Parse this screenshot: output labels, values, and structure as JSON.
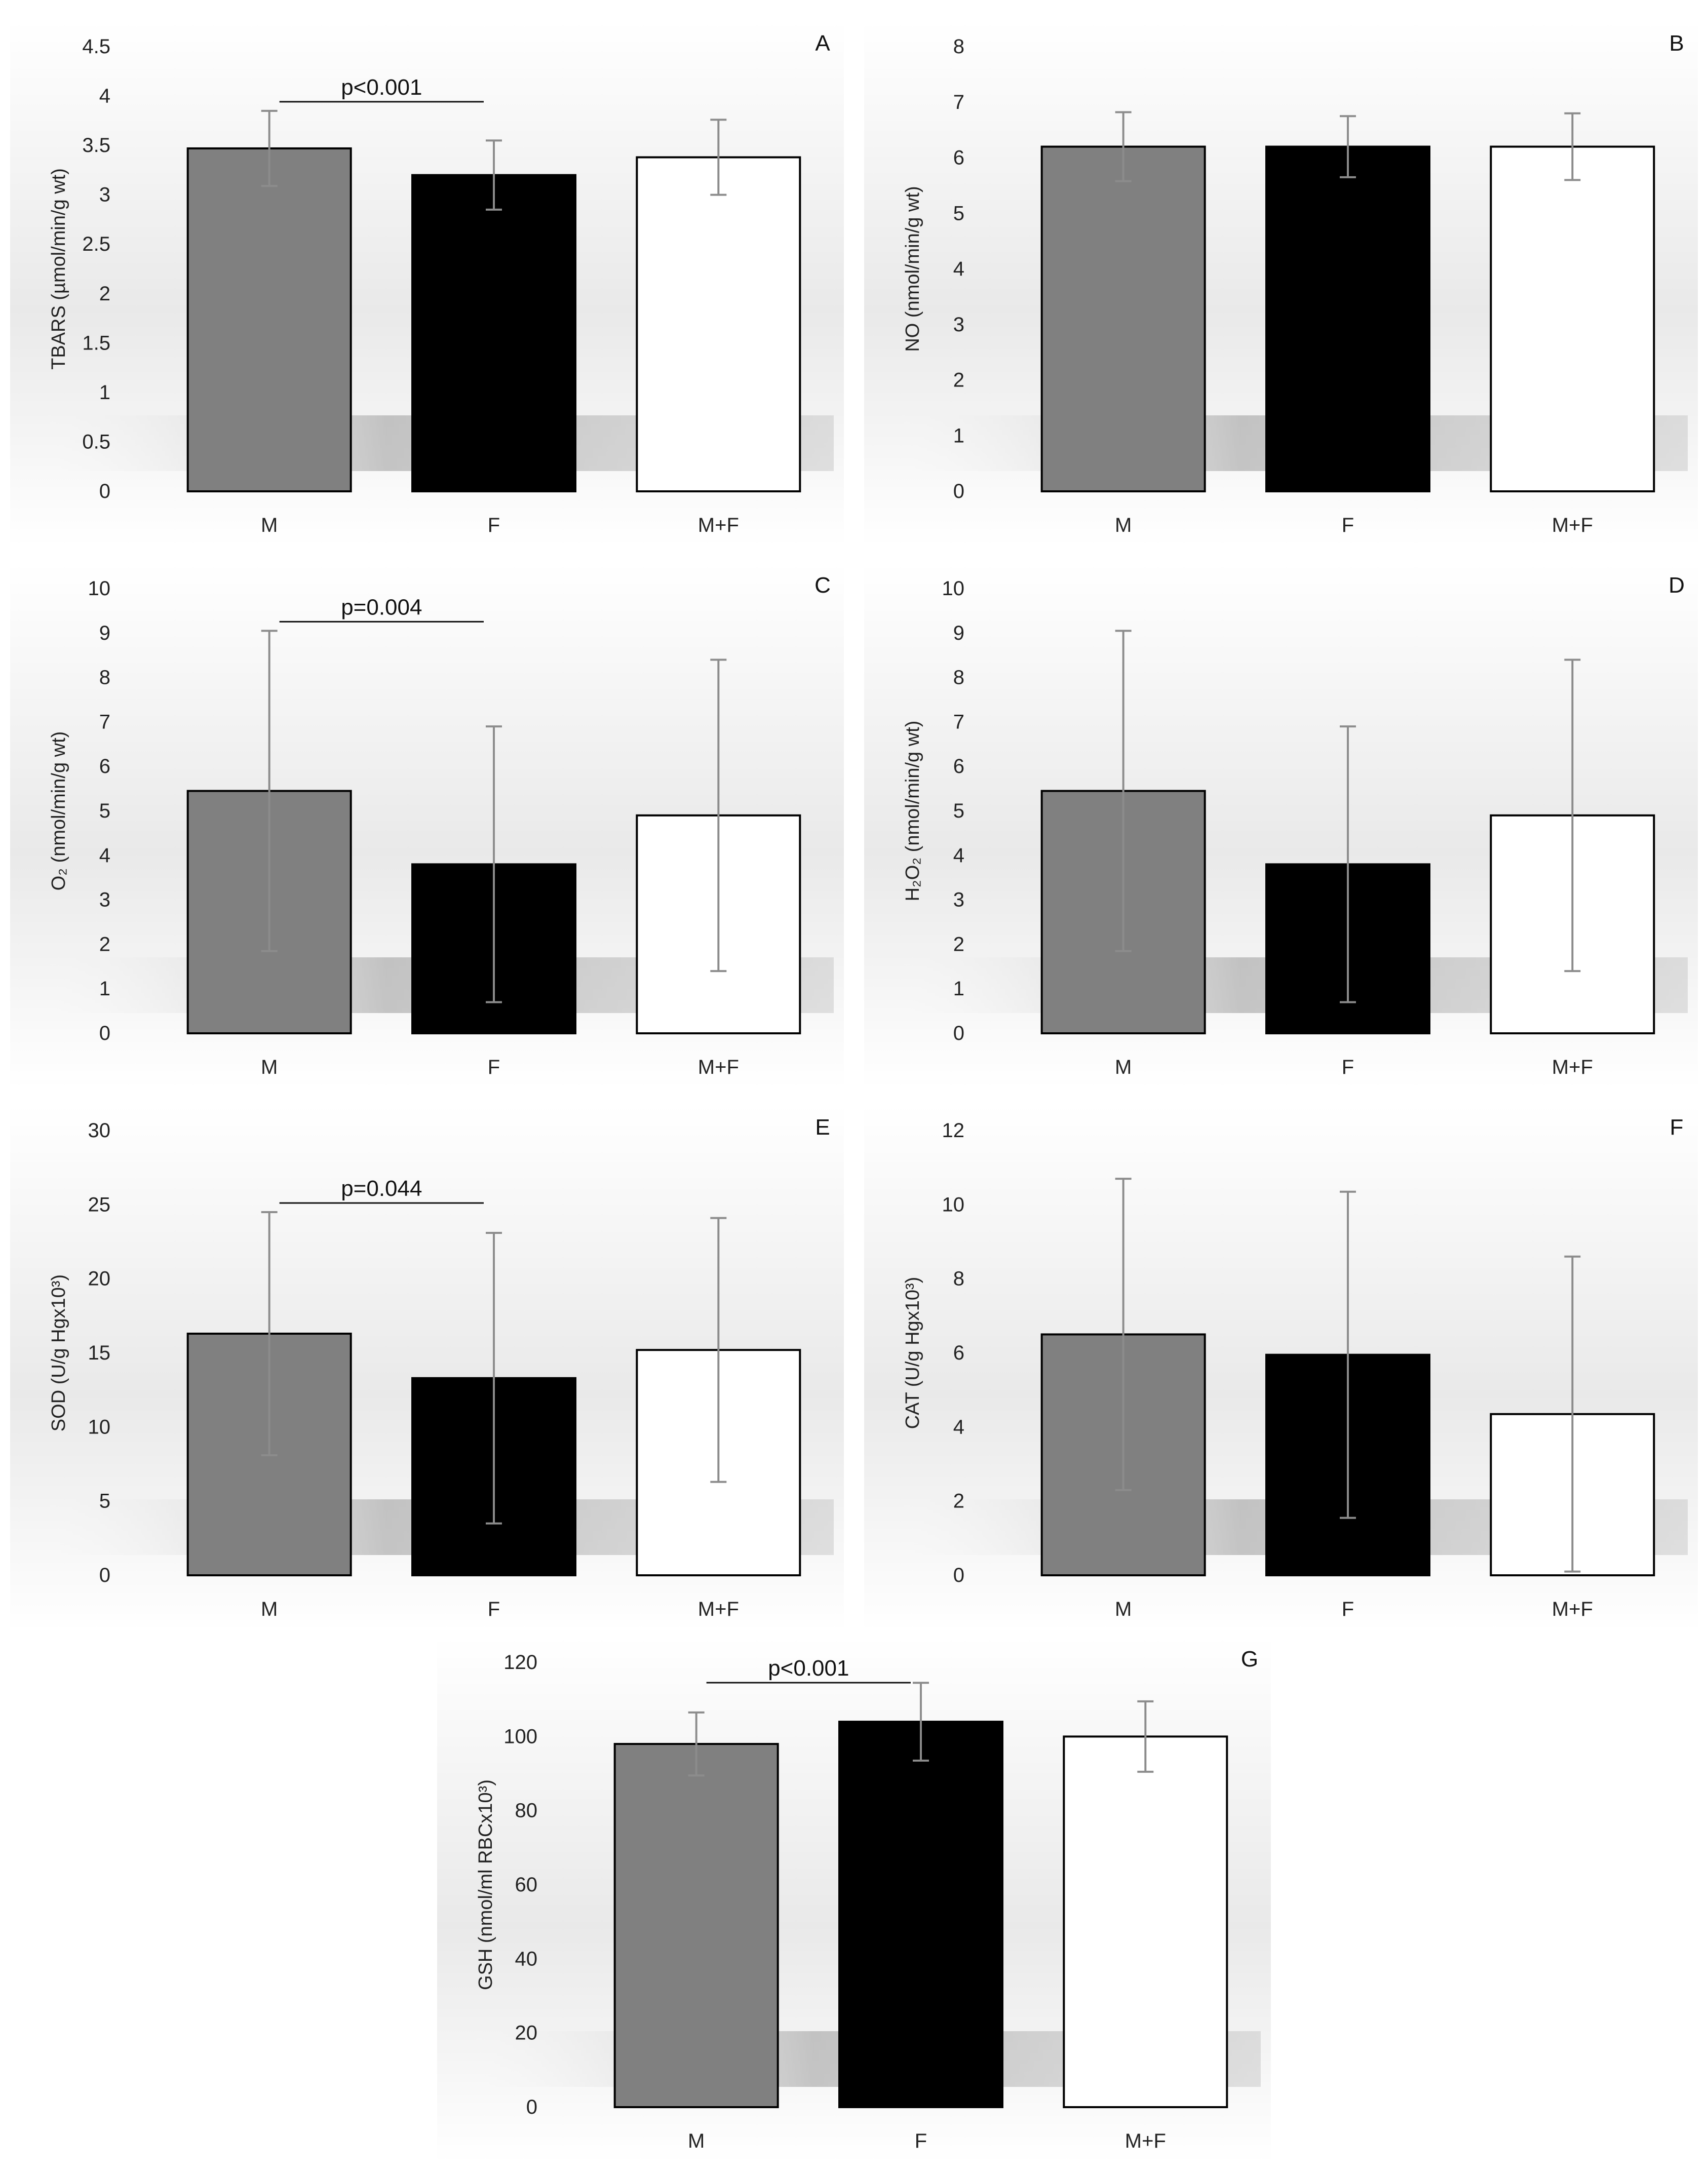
{
  "chart_data": [
    {
      "panel": "A",
      "type": "bar",
      "categories": [
        "M",
        "F",
        "M+F"
      ],
      "values": [
        3.47,
        3.2,
        3.38
      ],
      "errors": [
        0.38,
        0.35,
        0.38
      ],
      "ylabel": "TBARS (µmol/min/g wt)",
      "ylim": [
        0,
        4.5
      ],
      "yticks": [
        0,
        0.5,
        1,
        1.5,
        2,
        2.5,
        3,
        3.5,
        4,
        4.5
      ],
      "significance": {
        "label": "p<0.001",
        "from": 0,
        "to": 1
      }
    },
    {
      "panel": "B",
      "type": "bar",
      "categories": [
        "M",
        "F",
        "M+F"
      ],
      "values": [
        6.2,
        6.2,
        6.2
      ],
      "errors": [
        0.62,
        0.55,
        0.6
      ],
      "ylabel": "NO (nmol/min/g wt)",
      "ylim": [
        0,
        8
      ],
      "yticks": [
        0,
        1,
        2,
        3,
        4,
        5,
        6,
        7,
        8
      ]
    },
    {
      "panel": "C",
      "type": "bar",
      "categories": [
        "M",
        "F",
        "M+F"
      ],
      "values": [
        5.45,
        3.8,
        4.9
      ],
      "errors": [
        3.6,
        3.1,
        3.5
      ],
      "ylabel": "O₂ (nmol/min/g wt)",
      "ylim": [
        0,
        10
      ],
      "yticks": [
        0,
        1,
        2,
        3,
        4,
        5,
        6,
        7,
        8,
        9,
        10
      ],
      "significance": {
        "label": "p=0.004",
        "from": 0,
        "to": 1
      }
    },
    {
      "panel": "D",
      "type": "bar",
      "categories": [
        "M",
        "F",
        "M+F"
      ],
      "values": [
        5.45,
        3.8,
        4.9
      ],
      "errors": [
        3.6,
        3.1,
        3.5
      ],
      "ylabel": "H₂O₂ (nmol/min/g wt)",
      "ylim": [
        0,
        10
      ],
      "yticks": [
        0,
        1,
        2,
        3,
        4,
        5,
        6,
        7,
        8,
        9,
        10
      ]
    },
    {
      "panel": "E",
      "type": "bar",
      "categories": [
        "M",
        "F",
        "M+F"
      ],
      "values": [
        16.3,
        13.3,
        15.2
      ],
      "errors": [
        8.2,
        9.8,
        8.9
      ],
      "ylabel": "SOD (U/g Hgx10³)",
      "ylim": [
        0,
        30
      ],
      "yticks": [
        0,
        5,
        10,
        15,
        20,
        25,
        30
      ],
      "significance": {
        "label": "p=0.044",
        "from": 0,
        "to": 1
      }
    },
    {
      "panel": "F",
      "type": "bar",
      "categories": [
        "M",
        "F",
        "M+F"
      ],
      "values": [
        6.5,
        5.95,
        4.35
      ],
      "errors": [
        4.2,
        4.4,
        4.25
      ],
      "ylabel": "CAT (U/g Hgx10³)",
      "ylim": [
        0,
        12
      ],
      "yticks": [
        0,
        2,
        4,
        6,
        8,
        10,
        12
      ]
    },
    {
      "panel": "G",
      "type": "bar",
      "categories": [
        "M",
        "F",
        "M+F"
      ],
      "values": [
        98,
        104,
        100
      ],
      "errors": [
        8.5,
        10.5,
        9.5
      ],
      "ylabel": "GSH (nmol/ml RBCx10³)",
      "ylim": [
        0,
        120
      ],
      "yticks": [
        0,
        20,
        40,
        60,
        80,
        100,
        120
      ],
      "significance": {
        "label": "p<0.001",
        "from": 0,
        "to": 1
      }
    }
  ],
  "colors": {
    "M": "#808080",
    "F": "#000000",
    "M+F": "#ffffff",
    "error_bar": "#8c8c8c",
    "text": "#222222"
  }
}
